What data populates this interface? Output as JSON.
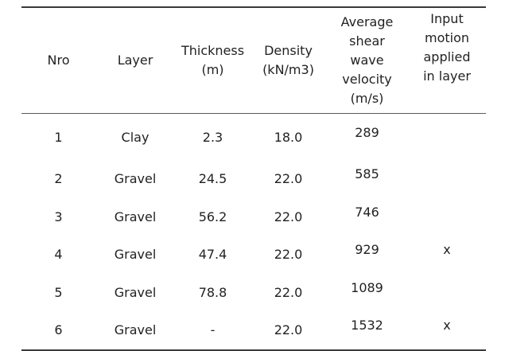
{
  "table": {
    "headers": [
      [
        "Nro"
      ],
      [
        "Layer"
      ],
      [
        "Thickness",
        "(m)"
      ],
      [
        "Density",
        "(kN/m3)"
      ],
      [
        "Average",
        "shear",
        "wave",
        "velocity",
        "(m/s)"
      ],
      [
        "Input",
        "motion",
        "applied",
        "in layer"
      ]
    ],
    "rows": [
      {
        "nro": "1",
        "layer": "Clay",
        "thickness": "2.3",
        "density": "18.0",
        "velocity": "289",
        "input": ""
      },
      {
        "nro": "2",
        "layer": "Gravel",
        "thickness": "24.5",
        "density": "22.0",
        "velocity": "585",
        "input": ""
      },
      {
        "nro": "3",
        "layer": "Gravel",
        "thickness": "56.2",
        "density": "22.0",
        "velocity": "746",
        "input": ""
      },
      {
        "nro": "4",
        "layer": "Gravel",
        "thickness": "47.4",
        "density": "22.0",
        "velocity": "929",
        "input": "x"
      },
      {
        "nro": "5",
        "layer": "Gravel",
        "thickness": "78.8",
        "density": "22.0",
        "velocity": "1089",
        "input": ""
      },
      {
        "nro": "6",
        "layer": "Gravel",
        "thickness": "-",
        "density": "22.0",
        "velocity": "1532",
        "input": "x"
      }
    ]
  }
}
